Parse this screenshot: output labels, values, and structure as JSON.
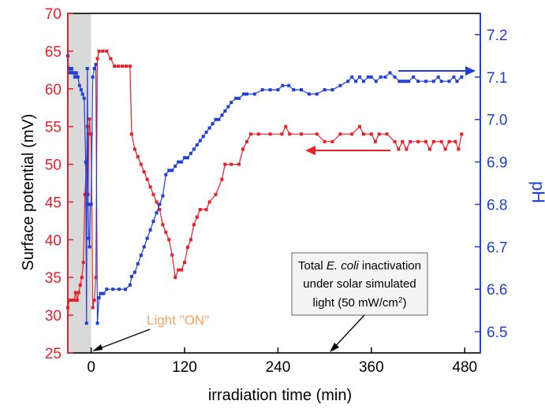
{
  "chart_data": {
    "type": "line",
    "xlabel": "irradiation time (min)",
    "ylabel_left": "Surface potential (mV)",
    "ylabel_right": "pH",
    "xlim": [
      -30,
      500
    ],
    "ylim_left": [
      25,
      70
    ],
    "ylim_right": [
      6.45,
      7.25
    ],
    "x_ticks": [
      "0",
      "120",
      "240",
      "360",
      "480"
    ],
    "y_ticks_left": [
      "25",
      "30",
      "35",
      "40",
      "45",
      "50",
      "55",
      "60",
      "65",
      "70"
    ],
    "y_ticks_right": [
      "6.5",
      "6.6",
      "6.7",
      "6.8",
      "6.9",
      "7.0",
      "7.1",
      "7.2"
    ],
    "dark_region": [
      -30,
      0
    ],
    "colors": {
      "left_axis": "#e8202a",
      "right_axis": "#1f3fd8",
      "dark_region": "#d9d9d9",
      "light_label": "#f4a460"
    },
    "series": [
      {
        "axis": "left",
        "color": "#e8202a",
        "points": [
          [
            -30,
            31
          ],
          [
            -28,
            32
          ],
          [
            -26,
            32
          ],
          [
            -24,
            32
          ],
          [
            -22,
            32
          ],
          [
            -20,
            33
          ],
          [
            -18,
            32
          ],
          [
            -16,
            33
          ],
          [
            -14,
            34
          ],
          [
            -12,
            35
          ],
          [
            -10,
            37
          ],
          [
            -8,
            46
          ],
          [
            -6,
            50
          ],
          [
            -5,
            55
          ],
          [
            -4,
            46
          ],
          [
            -3,
            54
          ],
          [
            -2,
            56
          ],
          [
            -1,
            54
          ],
          [
            0,
            54
          ],
          [
            2,
            31
          ],
          [
            4,
            32
          ],
          [
            6,
            35
          ],
          [
            8,
            64
          ],
          [
            10,
            65
          ],
          [
            15,
            65
          ],
          [
            20,
            65
          ],
          [
            25,
            64
          ],
          [
            30,
            63
          ],
          [
            35,
            63
          ],
          [
            40,
            63
          ],
          [
            45,
            63
          ],
          [
            50,
            63
          ],
          [
            52,
            54
          ],
          [
            56,
            52
          ],
          [
            60,
            51
          ],
          [
            64,
            50
          ],
          [
            68,
            49
          ],
          [
            72,
            48
          ],
          [
            76,
            47
          ],
          [
            80,
            46
          ],
          [
            84,
            45
          ],
          [
            88,
            44
          ],
          [
            92,
            42
          ],
          [
            96,
            41
          ],
          [
            100,
            40
          ],
          [
            104,
            38
          ],
          [
            108,
            35
          ],
          [
            112,
            36
          ],
          [
            116,
            36
          ],
          [
            120,
            37
          ],
          [
            124,
            39
          ],
          [
            128,
            40
          ],
          [
            132,
            42
          ],
          [
            136,
            43
          ],
          [
            140,
            44
          ],
          [
            148,
            44
          ],
          [
            152,
            45
          ],
          [
            160,
            46
          ],
          [
            168,
            48
          ],
          [
            172,
            50
          ],
          [
            180,
            50
          ],
          [
            190,
            50
          ],
          [
            195,
            52
          ],
          [
            200,
            53
          ],
          [
            205,
            54
          ],
          [
            215,
            54
          ],
          [
            230,
            54
          ],
          [
            245,
            54
          ],
          [
            250,
            55
          ],
          [
            255,
            54
          ],
          [
            270,
            54
          ],
          [
            290,
            54
          ],
          [
            300,
            53
          ],
          [
            310,
            53
          ],
          [
            320,
            54
          ],
          [
            335,
            54
          ],
          [
            345,
            55
          ],
          [
            350,
            54
          ],
          [
            360,
            54
          ],
          [
            365,
            53
          ],
          [
            370,
            54
          ],
          [
            380,
            54
          ],
          [
            390,
            53
          ],
          [
            395,
            52
          ],
          [
            400,
            53
          ],
          [
            405,
            52
          ],
          [
            410,
            53
          ],
          [
            420,
            53
          ],
          [
            430,
            53
          ],
          [
            435,
            52
          ],
          [
            440,
            53
          ],
          [
            450,
            53
          ],
          [
            455,
            52
          ],
          [
            460,
            53
          ],
          [
            468,
            53
          ],
          [
            472,
            52
          ],
          [
            476,
            54
          ]
        ]
      },
      {
        "axis": "right",
        "color": "#1f3fd8",
        "points": [
          [
            -30,
            7.15
          ],
          [
            -29,
            7.12
          ],
          [
            -27,
            7.11
          ],
          [
            -25,
            7.12
          ],
          [
            -23,
            7.11
          ],
          [
            -21,
            7.1
          ],
          [
            -19,
            7.11
          ],
          [
            -17,
            7.1
          ],
          [
            -15,
            7.08
          ],
          [
            -13,
            7.07
          ],
          [
            -11,
            7.06
          ],
          [
            -9,
            7.05
          ],
          [
            -7,
            6.9
          ],
          [
            -6,
            6.52
          ],
          [
            -5,
            7.12
          ],
          [
            -4,
            6.8
          ],
          [
            -3,
            6.72
          ],
          [
            -2,
            6.7
          ],
          [
            -1,
            6.8
          ],
          [
            0,
            6.8
          ],
          [
            2,
            7.1
          ],
          [
            4,
            7.12
          ],
          [
            6,
            7.13
          ],
          [
            8,
            6.52
          ],
          [
            10,
            6.58
          ],
          [
            12,
            6.59
          ],
          [
            16,
            6.59
          ],
          [
            20,
            6.6
          ],
          [
            28,
            6.6
          ],
          [
            36,
            6.6
          ],
          [
            44,
            6.6
          ],
          [
            50,
            6.61
          ],
          [
            52,
            6.63
          ],
          [
            56,
            6.64
          ],
          [
            60,
            6.66
          ],
          [
            64,
            6.68
          ],
          [
            68,
            6.7
          ],
          [
            72,
            6.72
          ],
          [
            76,
            6.74
          ],
          [
            80,
            6.76
          ],
          [
            84,
            6.78
          ],
          [
            88,
            6.8
          ],
          [
            92,
            6.82
          ],
          [
            96,
            6.87
          ],
          [
            100,
            6.88
          ],
          [
            104,
            6.88
          ],
          [
            108,
            6.89
          ],
          [
            112,
            6.9
          ],
          [
            116,
            6.9
          ],
          [
            120,
            6.91
          ],
          [
            124,
            6.91
          ],
          [
            128,
            6.92
          ],
          [
            132,
            6.93
          ],
          [
            136,
            6.94
          ],
          [
            140,
            6.95
          ],
          [
            144,
            6.96
          ],
          [
            148,
            6.97
          ],
          [
            152,
            6.98
          ],
          [
            156,
            6.99
          ],
          [
            160,
            7.0
          ],
          [
            164,
            7.0
          ],
          [
            168,
            7.01
          ],
          [
            172,
            7.02
          ],
          [
            176,
            7.03
          ],
          [
            180,
            7.04
          ],
          [
            186,
            7.05
          ],
          [
            190,
            7.05
          ],
          [
            196,
            7.06
          ],
          [
            200,
            7.06
          ],
          [
            210,
            7.06
          ],
          [
            220,
            7.07
          ],
          [
            230,
            7.07
          ],
          [
            240,
            7.07
          ],
          [
            246,
            7.08
          ],
          [
            254,
            7.08
          ],
          [
            260,
            7.07
          ],
          [
            270,
            7.07
          ],
          [
            280,
            7.06
          ],
          [
            290,
            7.06
          ],
          [
            300,
            7.07
          ],
          [
            310,
            7.07
          ],
          [
            320,
            7.08
          ],
          [
            330,
            7.09
          ],
          [
            335,
            7.1
          ],
          [
            340,
            7.09
          ],
          [
            345,
            7.1
          ],
          [
            350,
            7.09
          ],
          [
            356,
            7.1
          ],
          [
            360,
            7.1
          ],
          [
            366,
            7.09
          ],
          [
            372,
            7.1
          ],
          [
            378,
            7.1
          ],
          [
            384,
            7.11
          ],
          [
            390,
            7.1
          ],
          [
            396,
            7.09
          ],
          [
            400,
            7.09
          ],
          [
            404,
            7.09
          ],
          [
            408,
            7.09
          ],
          [
            414,
            7.1
          ],
          [
            420,
            7.09
          ],
          [
            430,
            7.09
          ],
          [
            440,
            7.09
          ],
          [
            446,
            7.1
          ],
          [
            450,
            7.09
          ],
          [
            460,
            7.09
          ],
          [
            466,
            7.1
          ],
          [
            470,
            7.09
          ],
          [
            476,
            7.1
          ]
        ]
      }
    ],
    "annotations": {
      "light_on": "Light \"ON\"",
      "box_lines": [
        "Total E. coli inactivation",
        "under solar simulated",
        "light (50 mW/cm2)"
      ]
    }
  }
}
